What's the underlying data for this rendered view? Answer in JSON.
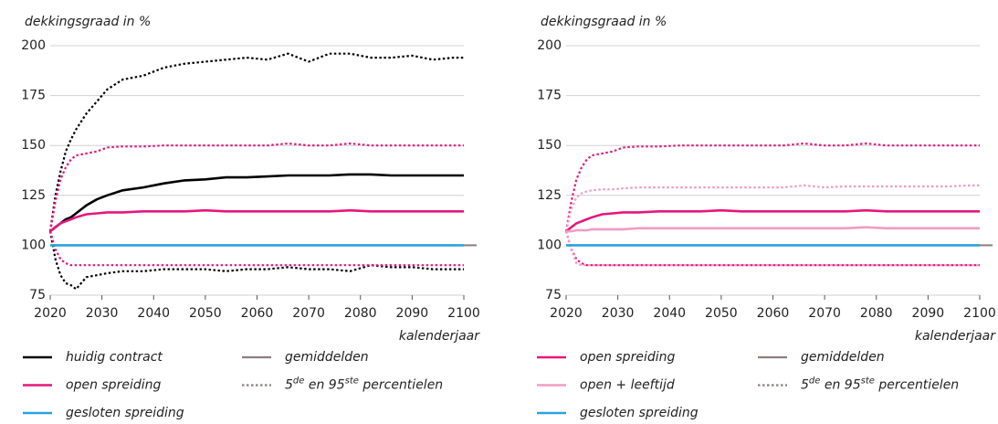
{
  "chart_data": [
    {
      "type": "line",
      "ylabel": "dekkingsgraad in %",
      "xlabel": "kalenderjaar",
      "x": [
        2020,
        2021,
        2022,
        2023,
        2024,
        2025,
        2027,
        2029,
        2031,
        2034,
        2038,
        2042,
        2046,
        2050,
        2054,
        2058,
        2062,
        2066,
        2070,
        2074,
        2078,
        2082,
        2086,
        2090,
        2094,
        2098,
        2100
      ],
      "xlim": [
        2020,
        2100
      ],
      "xticks": [
        2020,
        2030,
        2040,
        2050,
        2060,
        2070,
        2080,
        2090,
        2100
      ],
      "ylim": [
        75,
        200
      ],
      "yticks": [
        75,
        100,
        125,
        150,
        175,
        200
      ],
      "grid": true,
      "series": [
        {
          "name": "huidig contract",
          "color": "#000000",
          "values": [
            107,
            109,
            111,
            113,
            114,
            116,
            120,
            123,
            125,
            127.5,
            129,
            131,
            132.5,
            133,
            134,
            134,
            134.5,
            135,
            135,
            135,
            135.5,
            135.5,
            135,
            135,
            135,
            135,
            135
          ],
          "p5": [
            107,
            93,
            85,
            81,
            80,
            78,
            84,
            85,
            86,
            87,
            87,
            88,
            88,
            88,
            87,
            88,
            88,
            89,
            88,
            88,
            87,
            90,
            89,
            89,
            88,
            88,
            88
          ],
          "p95": [
            107,
            125,
            137,
            147,
            153,
            158,
            166,
            172,
            178,
            183,
            185,
            189,
            191,
            192,
            193,
            194,
            193,
            196,
            192,
            196,
            196,
            194,
            194,
            195,
            193,
            194,
            194
          ]
        },
        {
          "name": "open spreiding",
          "color": "#e5177e",
          "values": [
            107,
            109,
            111,
            112,
            113,
            114,
            115.5,
            116,
            116.5,
            116.5,
            117,
            117,
            117,
            117.5,
            117,
            117,
            117,
            117,
            117,
            117,
            117.5,
            117,
            117,
            117,
            117,
            117,
            117
          ],
          "p5": [
            107,
            98,
            93,
            91,
            90,
            90,
            90,
            90,
            90,
            90,
            90,
            90,
            90,
            90,
            90,
            90,
            90,
            90,
            90,
            90,
            90,
            90,
            90,
            90,
            90,
            90,
            90
          ],
          "p95": [
            107,
            122,
            133,
            139,
            143,
            145,
            146,
            147,
            149,
            149.5,
            149.5,
            150,
            150,
            150,
            150,
            150,
            150,
            151,
            150,
            150,
            151,
            150,
            150,
            150,
            150,
            150,
            150
          ]
        },
        {
          "name": "gesloten spreiding",
          "color": "#2aa3de",
          "values": [
            100,
            100,
            100,
            100,
            100,
            100,
            100,
            100,
            100,
            100,
            100,
            100,
            100,
            100,
            100,
            100,
            100,
            100,
            100,
            100,
            100,
            100,
            100,
            100,
            100,
            100,
            100
          ]
        }
      ],
      "legend": [
        {
          "name": "gemiddelden",
          "color": "#8d7d7d"
        },
        {
          "parts": [
            "5",
            "de",
            " en 95",
            "ste",
            " percentielen"
          ],
          "color": "#8d7d7d",
          "style": "dotted"
        }
      ]
    },
    {
      "type": "line",
      "ylabel": "dekkingsgraad in %",
      "xlabel": "kalenderjaar",
      "x": [
        2020,
        2021,
        2022,
        2023,
        2024,
        2025,
        2027,
        2029,
        2031,
        2034,
        2038,
        2042,
        2046,
        2050,
        2054,
        2058,
        2062,
        2066,
        2070,
        2074,
        2078,
        2082,
        2086,
        2090,
        2094,
        2098,
        2100
      ],
      "xlim": [
        2020,
        2100
      ],
      "xticks": [
        2020,
        2030,
        2040,
        2050,
        2060,
        2070,
        2080,
        2090,
        2100
      ],
      "ylim": [
        75,
        200
      ],
      "yticks": [
        75,
        100,
        125,
        150,
        175,
        200
      ],
      "grid": true,
      "series": [
        {
          "name": "open spreiding",
          "color": "#e5177e",
          "values": [
            107,
            109,
            111,
            112,
            113,
            114,
            115.5,
            116,
            116.5,
            116.5,
            117,
            117,
            117,
            117.5,
            117,
            117,
            117,
            117,
            117,
            117,
            117.5,
            117,
            117,
            117,
            117,
            117,
            117
          ],
          "p5": [
            107,
            98,
            93,
            91,
            90,
            90,
            90,
            90,
            90,
            90,
            90,
            90,
            90,
            90,
            90,
            90,
            90,
            90,
            90,
            90,
            90,
            90,
            90,
            90,
            90,
            90,
            90
          ],
          "p95": [
            107,
            122,
            133,
            139,
            143,
            145,
            146,
            147,
            149,
            149.5,
            149.5,
            150,
            150,
            150,
            150,
            150,
            150,
            151,
            150,
            150,
            151,
            150,
            150,
            150,
            150,
            150,
            150
          ]
        },
        {
          "name": "open + leeftijd",
          "color": "#f29bc3",
          "values": [
            107,
            107,
            107.5,
            107.5,
            107.5,
            108,
            108,
            108,
            108,
            108.5,
            108.5,
            108.5,
            108.5,
            108.5,
            108.5,
            108.5,
            108.5,
            108.5,
            108.5,
            108.5,
            109,
            108.5,
            108.5,
            108.5,
            108.5,
            108.5,
            108.5
          ],
          "p5": [
            107,
            98,
            91,
            90,
            90,
            90,
            90,
            90,
            90,
            90,
            90,
            90,
            90,
            90,
            90,
            90,
            90,
            90,
            90,
            90,
            90,
            90,
            90,
            90,
            90,
            90,
            90
          ],
          "p95": [
            107,
            118,
            124,
            126,
            127,
            127.5,
            128,
            128,
            128.5,
            129,
            129,
            129,
            129,
            129,
            129,
            129,
            129,
            130,
            129,
            129.5,
            129.5,
            129.5,
            129.5,
            129.5,
            129.5,
            130,
            130
          ]
        },
        {
          "name": "gesloten spreiding",
          "color": "#2aa3de",
          "values": [
            100,
            100,
            100,
            100,
            100,
            100,
            100,
            100,
            100,
            100,
            100,
            100,
            100,
            100,
            100,
            100,
            100,
            100,
            100,
            100,
            100,
            100,
            100,
            100,
            100,
            100,
            100
          ]
        }
      ],
      "legend": [
        {
          "name": "gemiddelden",
          "color": "#8d7d7d"
        },
        {
          "parts": [
            "5",
            "de",
            " en 95",
            "ste",
            " percentielen"
          ],
          "color": "#8d7d7d",
          "style": "dotted"
        }
      ]
    }
  ]
}
